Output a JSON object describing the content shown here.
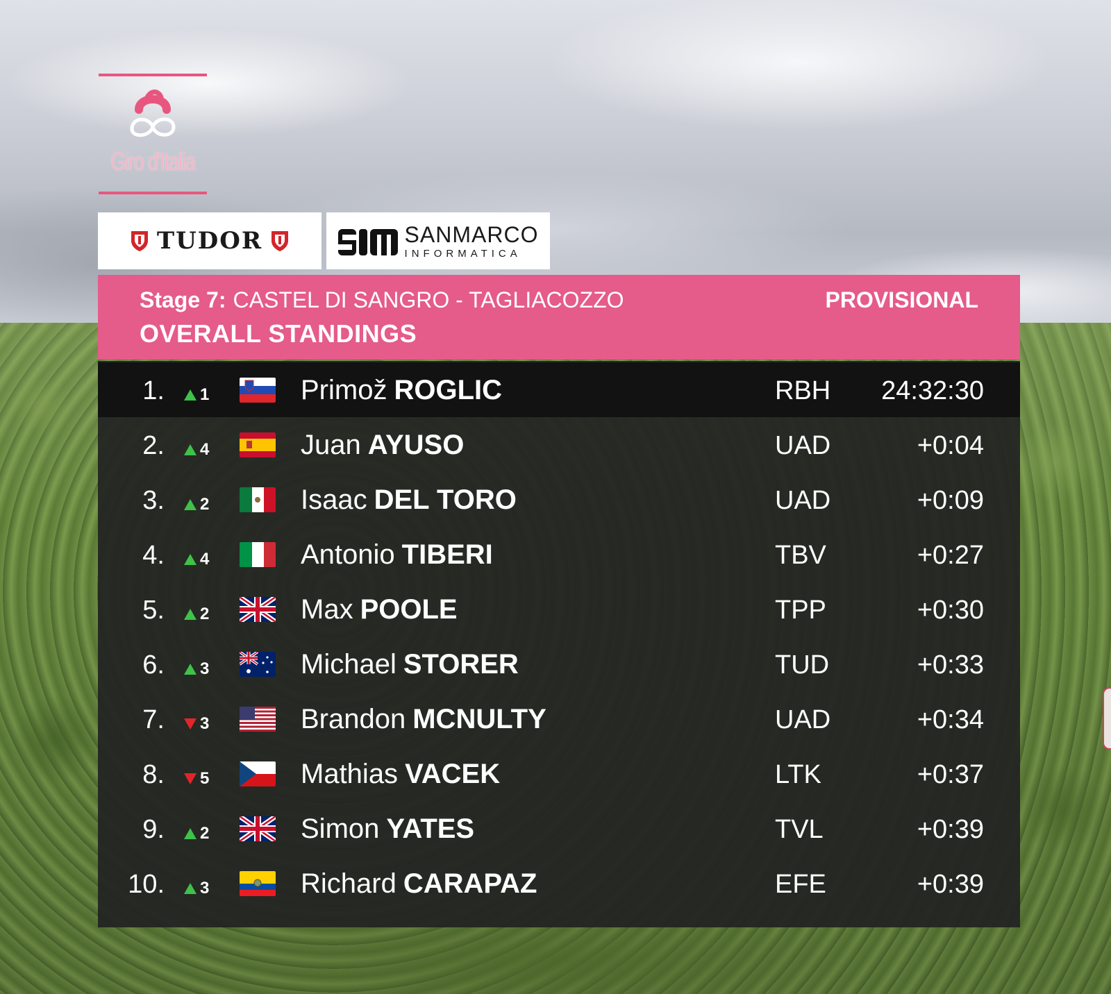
{
  "logo": {
    "wordmark": "Giro d'Italia",
    "accent_color": "#e8567f"
  },
  "sponsors": [
    {
      "name": "TUDOR",
      "icon": "tudor-shield-icon"
    },
    {
      "name": "SANMARCO",
      "sub": "INFORMATICA",
      "icon": "sanmarco-sm-logo"
    }
  ],
  "header": {
    "stage_label": "Stage 7:",
    "route": "CASTEL DI SANGRO - TAGLIACOZZO",
    "subtitle": "OVERALL STANDINGS",
    "status": "PROVISIONAL",
    "band_color": "#e55b8a"
  },
  "colors": {
    "up": "#3fc14a",
    "down": "#e0262b"
  },
  "standings": [
    {
      "pos": "1.",
      "dir": "up",
      "change": "1",
      "flag": "slovenia",
      "first": "Primož",
      "last": "ROGLIC",
      "team": "RBH",
      "time": "24:32:30"
    },
    {
      "pos": "2.",
      "dir": "up",
      "change": "4",
      "flag": "spain",
      "first": "Juan",
      "last": "AYUSO",
      "team": "UAD",
      "time": "+0:04"
    },
    {
      "pos": "3.",
      "dir": "up",
      "change": "2",
      "flag": "mexico",
      "first": "Isaac",
      "last": "DEL TORO",
      "team": "UAD",
      "time": "+0:09"
    },
    {
      "pos": "4.",
      "dir": "up",
      "change": "4",
      "flag": "italy",
      "first": "Antonio",
      "last": "TIBERI",
      "team": "TBV",
      "time": "+0:27"
    },
    {
      "pos": "5.",
      "dir": "up",
      "change": "2",
      "flag": "united-kingdom",
      "first": "Max",
      "last": "POOLE",
      "team": "TPP",
      "time": "+0:30"
    },
    {
      "pos": "6.",
      "dir": "up",
      "change": "3",
      "flag": "australia",
      "first": "Michael",
      "last": "STORER",
      "team": "TUD",
      "time": "+0:33"
    },
    {
      "pos": "7.",
      "dir": "down",
      "change": "3",
      "flag": "united-states",
      "first": "Brandon",
      "last": "MCNULTY",
      "team": "UAD",
      "time": "+0:34"
    },
    {
      "pos": "8.",
      "dir": "down",
      "change": "5",
      "flag": "czech-republic",
      "first": "Mathias",
      "last": "VACEK",
      "team": "LTK",
      "time": "+0:37"
    },
    {
      "pos": "9.",
      "dir": "up",
      "change": "2",
      "flag": "united-kingdom",
      "first": "Simon",
      "last": "YATES",
      "team": "TVL",
      "time": "+0:39"
    },
    {
      "pos": "10.",
      "dir": "up",
      "change": "3",
      "flag": "ecuador",
      "first": "Richard",
      "last": "CARAPAZ",
      "team": "EFE",
      "time": "+0:39"
    }
  ]
}
